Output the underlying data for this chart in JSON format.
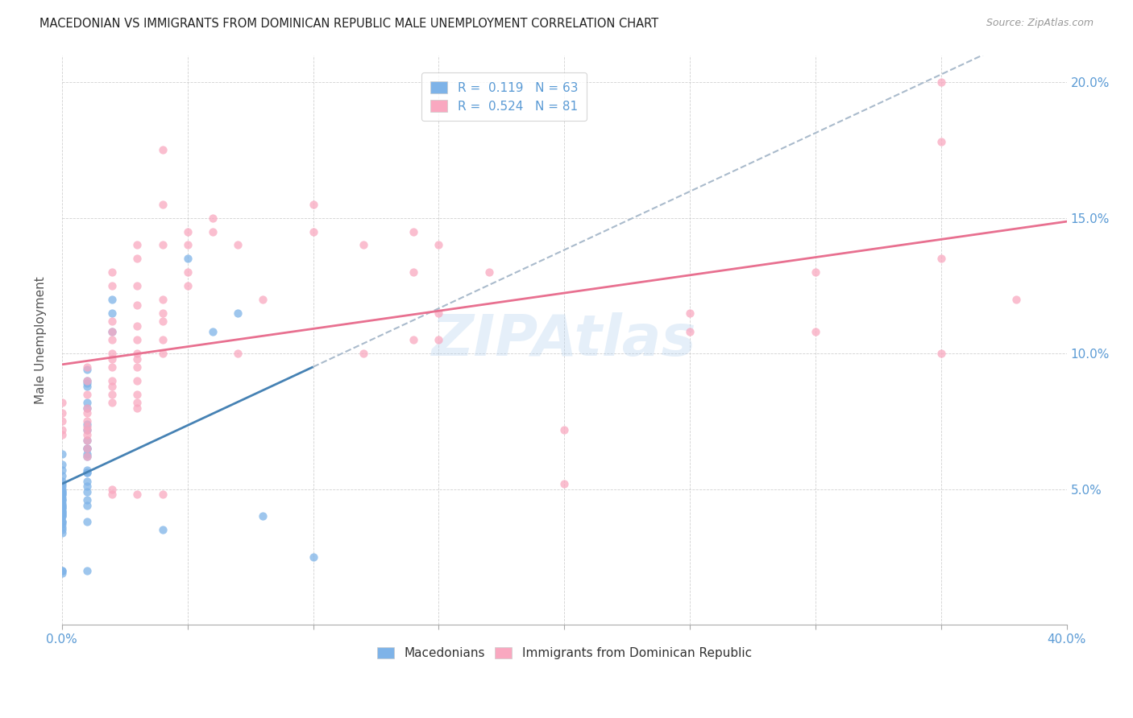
{
  "title": "MACEDONIAN VS IMMIGRANTS FROM DOMINICAN REPUBLIC MALE UNEMPLOYMENT CORRELATION CHART",
  "source": "Source: ZipAtlas.com",
  "ylabel": "Male Unemployment",
  "xlim": [
    0.0,
    40.0
  ],
  "ylim": [
    0.0,
    21.0
  ],
  "x_ticks": [
    0.0,
    5.0,
    10.0,
    15.0,
    20.0,
    25.0,
    30.0,
    35.0,
    40.0
  ],
  "x_tick_labels": [
    "0.0%",
    "",
    "",
    "",
    "",
    "",
    "",
    "",
    "40.0%"
  ],
  "y_ticks": [
    0.0,
    5.0,
    10.0,
    15.0,
    20.0
  ],
  "y_tick_labels": [
    "",
    "5.0%",
    "10.0%",
    "15.0%",
    "20.0%"
  ],
  "color_blue": "#7EB3E8",
  "color_pink": "#F9A8C0",
  "trendline_color_blue": "#4682B4",
  "trendline_color_pink": "#E87090",
  "trendline_dashed_color": "#AABBCC",
  "watermark": "ZIPAtlas",
  "macedonians": [
    [
      0.0,
      6.3
    ],
    [
      0.0,
      5.9
    ],
    [
      0.0,
      5.7
    ],
    [
      0.0,
      5.5
    ],
    [
      0.0,
      5.3
    ],
    [
      0.0,
      5.2
    ],
    [
      0.0,
      5.1
    ],
    [
      0.0,
      5.0
    ],
    [
      0.0,
      4.9
    ],
    [
      0.0,
      4.9
    ],
    [
      0.0,
      4.8
    ],
    [
      0.0,
      4.8
    ],
    [
      0.0,
      4.7
    ],
    [
      0.0,
      4.6
    ],
    [
      0.0,
      4.6
    ],
    [
      0.0,
      4.5
    ],
    [
      0.0,
      4.4
    ],
    [
      0.0,
      4.4
    ],
    [
      0.0,
      4.3
    ],
    [
      0.0,
      4.3
    ],
    [
      0.0,
      4.2
    ],
    [
      0.0,
      4.2
    ],
    [
      0.0,
      4.1
    ],
    [
      0.0,
      4.1
    ],
    [
      0.0,
      4.0
    ],
    [
      0.0,
      4.0
    ],
    [
      0.0,
      3.8
    ],
    [
      0.0,
      3.8
    ],
    [
      0.0,
      3.7
    ],
    [
      0.0,
      3.6
    ],
    [
      0.0,
      3.5
    ],
    [
      0.0,
      3.4
    ],
    [
      0.0,
      2.0
    ],
    [
      0.0,
      2.0
    ],
    [
      0.0,
      1.9
    ],
    [
      1.0,
      9.4
    ],
    [
      1.0,
      9.0
    ],
    [
      1.0,
      8.9
    ],
    [
      1.0,
      8.8
    ],
    [
      1.0,
      8.2
    ],
    [
      1.0,
      8.0
    ],
    [
      1.0,
      7.4
    ],
    [
      1.0,
      7.2
    ],
    [
      1.0,
      6.8
    ],
    [
      1.0,
      6.5
    ],
    [
      1.0,
      6.5
    ],
    [
      1.0,
      6.3
    ],
    [
      1.0,
      6.2
    ],
    [
      1.0,
      5.7
    ],
    [
      1.0,
      5.6
    ],
    [
      1.0,
      5.6
    ],
    [
      1.0,
      5.3
    ],
    [
      1.0,
      5.1
    ],
    [
      1.0,
      4.9
    ],
    [
      1.0,
      4.6
    ],
    [
      1.0,
      4.4
    ],
    [
      1.0,
      3.8
    ],
    [
      1.0,
      2.0
    ],
    [
      2.0,
      12.0
    ],
    [
      2.0,
      11.5
    ],
    [
      2.0,
      10.8
    ],
    [
      4.0,
      3.5
    ],
    [
      5.0,
      13.5
    ],
    [
      6.0,
      10.8
    ],
    [
      7.0,
      11.5
    ],
    [
      8.0,
      4.0
    ],
    [
      10.0,
      2.5
    ]
  ],
  "dominican": [
    [
      0.0,
      8.2
    ],
    [
      0.0,
      7.8
    ],
    [
      0.0,
      7.5
    ],
    [
      0.0,
      7.2
    ],
    [
      0.0,
      7.0
    ],
    [
      1.0,
      9.5
    ],
    [
      1.0,
      9.0
    ],
    [
      1.0,
      8.5
    ],
    [
      1.0,
      8.0
    ],
    [
      1.0,
      7.8
    ],
    [
      1.0,
      7.5
    ],
    [
      1.0,
      7.3
    ],
    [
      1.0,
      7.2
    ],
    [
      1.0,
      7.0
    ],
    [
      1.0,
      6.8
    ],
    [
      1.0,
      6.5
    ],
    [
      1.0,
      6.2
    ],
    [
      2.0,
      13.0
    ],
    [
      2.0,
      12.5
    ],
    [
      2.0,
      11.2
    ],
    [
      2.0,
      10.8
    ],
    [
      2.0,
      10.5
    ],
    [
      2.0,
      10.0
    ],
    [
      2.0,
      9.8
    ],
    [
      2.0,
      9.5
    ],
    [
      2.0,
      9.0
    ],
    [
      2.0,
      8.8
    ],
    [
      2.0,
      8.5
    ],
    [
      2.0,
      8.2
    ],
    [
      2.0,
      5.0
    ],
    [
      2.0,
      4.8
    ],
    [
      3.0,
      14.0
    ],
    [
      3.0,
      13.5
    ],
    [
      3.0,
      12.5
    ],
    [
      3.0,
      11.8
    ],
    [
      3.0,
      11.0
    ],
    [
      3.0,
      10.5
    ],
    [
      3.0,
      10.0
    ],
    [
      3.0,
      9.8
    ],
    [
      3.0,
      9.5
    ],
    [
      3.0,
      9.0
    ],
    [
      3.0,
      8.5
    ],
    [
      3.0,
      8.2
    ],
    [
      3.0,
      8.0
    ],
    [
      3.0,
      4.8
    ],
    [
      4.0,
      17.5
    ],
    [
      4.0,
      15.5
    ],
    [
      4.0,
      14.0
    ],
    [
      4.0,
      12.0
    ],
    [
      4.0,
      11.5
    ],
    [
      4.0,
      11.2
    ],
    [
      4.0,
      10.5
    ],
    [
      4.0,
      10.0
    ],
    [
      4.0,
      4.8
    ],
    [
      5.0,
      14.5
    ],
    [
      5.0,
      14.0
    ],
    [
      5.0,
      13.0
    ],
    [
      5.0,
      12.5
    ],
    [
      6.0,
      15.0
    ],
    [
      6.0,
      14.5
    ],
    [
      7.0,
      14.0
    ],
    [
      7.0,
      10.0
    ],
    [
      8.0,
      12.0
    ],
    [
      10.0,
      15.5
    ],
    [
      10.0,
      14.5
    ],
    [
      12.0,
      14.0
    ],
    [
      12.0,
      10.0
    ],
    [
      14.0,
      14.5
    ],
    [
      14.0,
      13.0
    ],
    [
      14.0,
      10.5
    ],
    [
      15.0,
      14.0
    ],
    [
      15.0,
      11.5
    ],
    [
      15.0,
      10.5
    ],
    [
      17.0,
      13.0
    ],
    [
      20.0,
      7.2
    ],
    [
      20.0,
      5.2
    ],
    [
      25.0,
      11.5
    ],
    [
      25.0,
      10.8
    ],
    [
      30.0,
      13.0
    ],
    [
      30.0,
      10.8
    ],
    [
      35.0,
      20.0
    ],
    [
      35.0,
      17.8
    ],
    [
      35.0,
      13.5
    ],
    [
      35.0,
      10.0
    ],
    [
      38.0,
      12.0
    ]
  ]
}
